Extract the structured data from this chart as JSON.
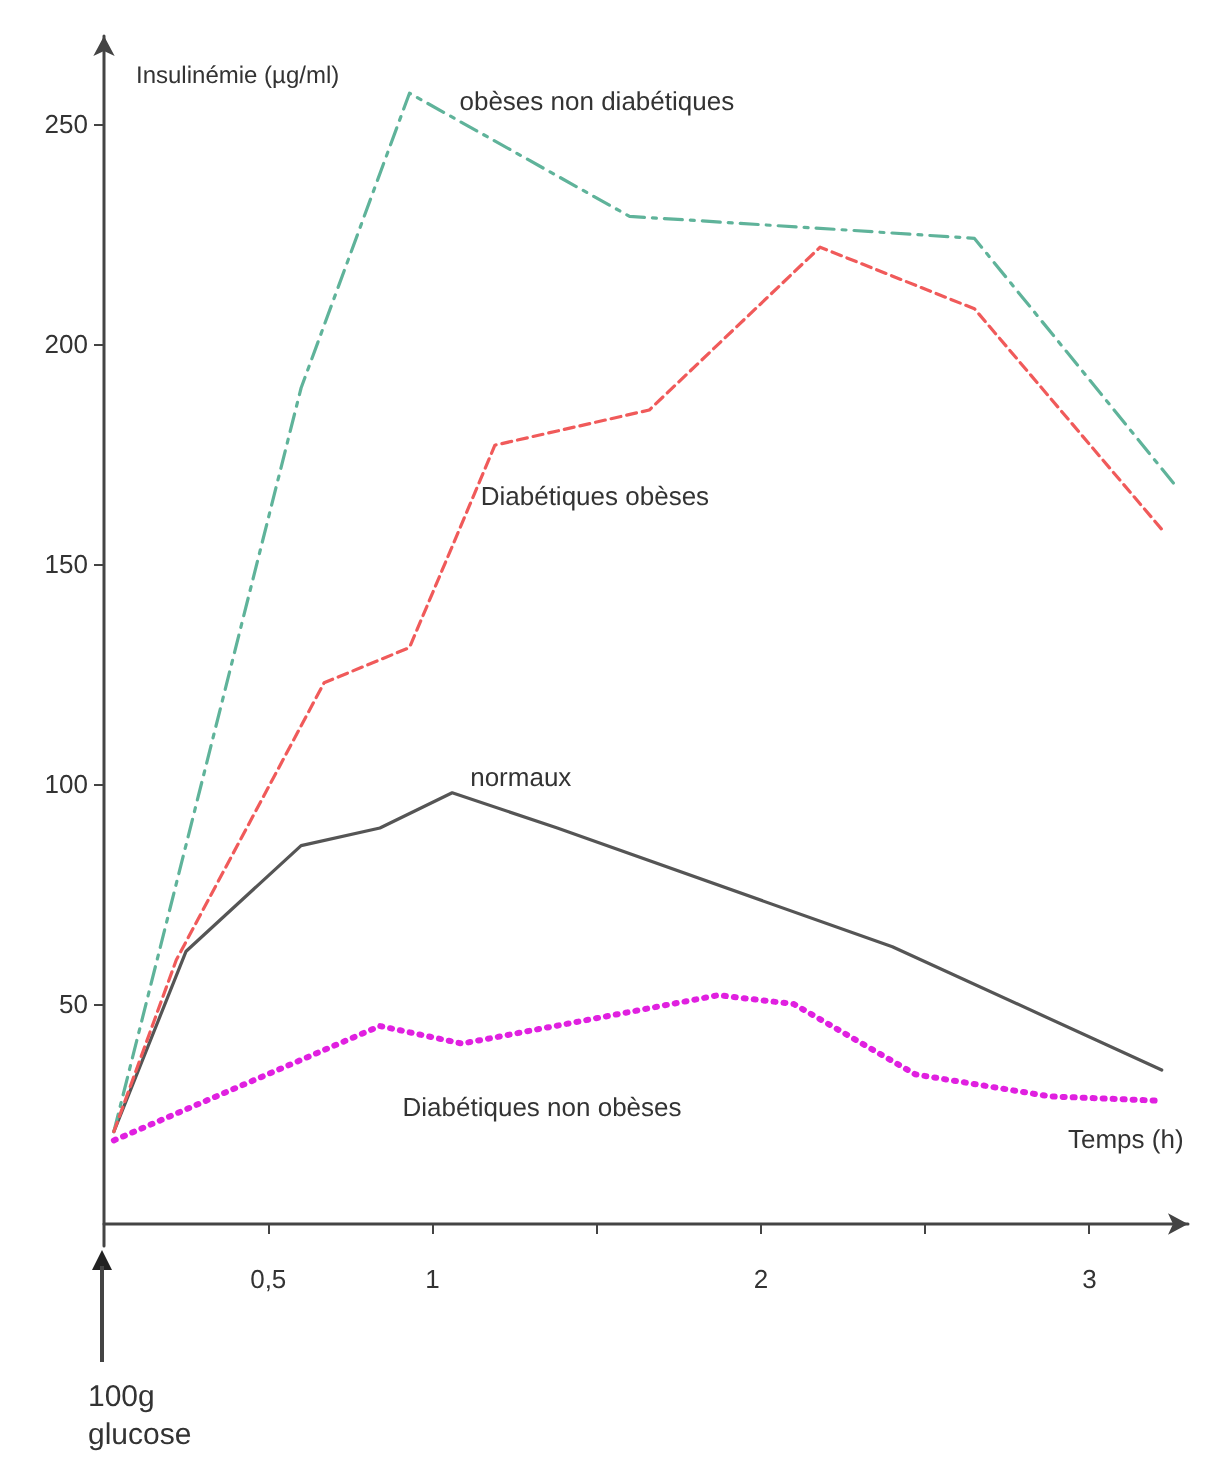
{
  "chart_data": {
    "type": "line",
    "ylabel": "Insulinémie (µg/ml)",
    "xlabel": "Temps (h)",
    "annotations": [
      "100g glucose"
    ],
    "xlim": [
      0,
      3.3
    ],
    "xticks": [
      {
        "value": 0.5,
        "label": "0,5"
      },
      1,
      {
        "value": 1.5,
        "label": null
      },
      2,
      {
        "value": 2.5,
        "label": null
      },
      3
    ],
    "ylim": [
      -5,
      270
    ],
    "yticks": [
      50,
      100,
      150,
      200,
      250
    ],
    "grid": false,
    "legend": false,
    "marker": "none",
    "series": [
      {
        "name": "obèses non diabétiques",
        "color": "#5fb39a",
        "line_style": "dashed",
        "x": [
          0.03,
          0.6,
          0.93,
          1.6,
          2.24,
          2.65,
          3.26
        ],
        "values": [
          21,
          190,
          257,
          229,
          226,
          224,
          168
        ]
      },
      {
        "name": "Diabétiques obèses",
        "color": "#f05a5a",
        "line_style": "dashed",
        "x": [
          0.03,
          0.22,
          0.67,
          0.93,
          1.19,
          1.66,
          2.18,
          2.65,
          3.23
        ],
        "values": [
          21,
          60,
          123,
          131,
          177,
          185,
          222,
          208,
          157
        ]
      },
      {
        "name": "normaux",
        "color": "#555555",
        "line_style": "solid",
        "x": [
          0.03,
          0.25,
          0.6,
          0.84,
          1.06,
          1.38,
          2.4,
          3.22
        ],
        "values": [
          21,
          62,
          86,
          90,
          98,
          90,
          63,
          35
        ]
      },
      {
        "name": "Diabétiques non obèses",
        "color": "#e020e0",
        "line_style": "dotted",
        "x": [
          0.03,
          0.84,
          1.09,
          1.87,
          2.1,
          2.47,
          2.88,
          3.22
        ],
        "values": [
          19,
          45,
          41,
          52,
          50,
          34,
          29,
          28
        ]
      }
    ]
  }
}
